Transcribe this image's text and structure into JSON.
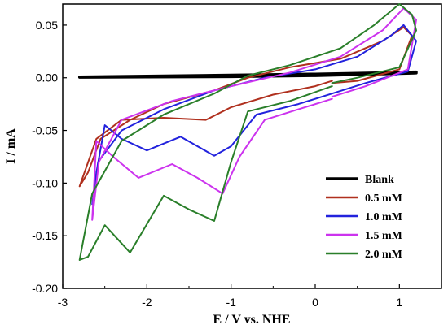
{
  "chart_data": {
    "type": "line",
    "title": "",
    "xlabel": "E / V vs. NHE",
    "ylabel": "I / mA",
    "xlim": [
      -3.0,
      1.5
    ],
    "ylim": [
      -0.2,
      0.07
    ],
    "xticks": [
      -3,
      -2,
      -1,
      0,
      1
    ],
    "xtick_labels": [
      "-3",
      "-2",
      "-1",
      "0",
      "1"
    ],
    "yticks": [
      -0.2,
      -0.15,
      -0.1,
      -0.05,
      0.0,
      0.05
    ],
    "ytick_labels": [
      "-0.20",
      "-0.15",
      "-0.10",
      "-0.05",
      "0.00",
      "0.05"
    ],
    "grid": false,
    "legend_position": "bottom-right",
    "series": [
      {
        "name": "Blank",
        "color": "#000000",
        "points": [
          [
            -2.8,
            0.0008
          ],
          [
            -2.0,
            0.0015
          ],
          [
            -1.0,
            0.0025
          ],
          [
            0.0,
            0.0035
          ],
          [
            1.0,
            0.005
          ],
          [
            1.2,
            0.0055
          ],
          [
            1.2,
            0.0045
          ],
          [
            0.0,
            0.002
          ],
          [
            -1.0,
            0.001
          ],
          [
            -2.0,
            0.0008
          ],
          [
            -2.8,
            0.0005
          ]
        ]
      },
      {
        "name": "0.5 mM",
        "color": "#b0301e",
        "points": [
          [
            0.2,
            -0.003
          ],
          [
            0.0,
            -0.008
          ],
          [
            -0.5,
            -0.016
          ],
          [
            -1.0,
            -0.028
          ],
          [
            -1.3,
            -0.04
          ],
          [
            -1.8,
            -0.038
          ],
          [
            -2.3,
            -0.04
          ],
          [
            -2.6,
            -0.058
          ],
          [
            -2.8,
            -0.103
          ],
          [
            -2.7,
            -0.09
          ],
          [
            -2.55,
            -0.058
          ],
          [
            -2.2,
            -0.04
          ],
          [
            -1.8,
            -0.025
          ],
          [
            -1.2,
            -0.012
          ],
          [
            -0.8,
            0.0
          ],
          [
            -0.3,
            0.01
          ],
          [
            0.3,
            0.018
          ],
          [
            0.8,
            0.035
          ],
          [
            1.05,
            0.048
          ],
          [
            1.15,
            0.04
          ],
          [
            1.0,
            0.008
          ],
          [
            0.5,
            -0.003
          ],
          [
            0.2,
            -0.005
          ]
        ]
      },
      {
        "name": "1.0 mM",
        "color": "#2222dd",
        "points": [
          [
            0.2,
            -0.015
          ],
          [
            -0.2,
            -0.025
          ],
          [
            -0.7,
            -0.035
          ],
          [
            -1.0,
            -0.065
          ],
          [
            -1.2,
            -0.074
          ],
          [
            -1.6,
            -0.056
          ],
          [
            -2.0,
            -0.069
          ],
          [
            -2.3,
            -0.058
          ],
          [
            -2.5,
            -0.045
          ],
          [
            -2.6,
            -0.09
          ],
          [
            -2.65,
            -0.12
          ],
          [
            -2.58,
            -0.08
          ],
          [
            -2.3,
            -0.05
          ],
          [
            -1.8,
            -0.03
          ],
          [
            -1.2,
            -0.012
          ],
          [
            -0.6,
            0.0
          ],
          [
            0.0,
            0.008
          ],
          [
            0.5,
            0.02
          ],
          [
            0.9,
            0.04
          ],
          [
            1.05,
            0.05
          ],
          [
            1.2,
            0.035
          ],
          [
            1.1,
            0.006
          ],
          [
            0.6,
            -0.005
          ],
          [
            0.2,
            -0.015
          ]
        ]
      },
      {
        "name": "1.5 mM",
        "color": "#cc33ee",
        "points": [
          [
            0.2,
            -0.02
          ],
          [
            -0.2,
            -0.03
          ],
          [
            -0.6,
            -0.04
          ],
          [
            -0.9,
            -0.075
          ],
          [
            -1.1,
            -0.11
          ],
          [
            -1.4,
            -0.095
          ],
          [
            -1.7,
            -0.082
          ],
          [
            -2.1,
            -0.095
          ],
          [
            -2.4,
            -0.075
          ],
          [
            -2.6,
            -0.06
          ],
          [
            -2.65,
            -0.135
          ],
          [
            -2.57,
            -0.08
          ],
          [
            -2.3,
            -0.04
          ],
          [
            -1.7,
            -0.022
          ],
          [
            -1.0,
            -0.008
          ],
          [
            -0.3,
            0.005
          ],
          [
            0.3,
            0.02
          ],
          [
            0.8,
            0.045
          ],
          [
            1.05,
            0.066
          ],
          [
            1.2,
            0.055
          ],
          [
            1.1,
            0.008
          ],
          [
            0.6,
            -0.008
          ],
          [
            0.2,
            -0.018
          ]
        ]
      },
      {
        "name": "2.0 mM",
        "color": "#2a7f2a",
        "points": [
          [
            0.2,
            -0.008
          ],
          [
            -0.3,
            -0.022
          ],
          [
            -0.8,
            -0.032
          ],
          [
            -1.0,
            -0.08
          ],
          [
            -1.2,
            -0.136
          ],
          [
            -1.5,
            -0.125
          ],
          [
            -1.8,
            -0.112
          ],
          [
            -2.2,
            -0.166
          ],
          [
            -2.5,
            -0.14
          ],
          [
            -2.7,
            -0.17
          ],
          [
            -2.8,
            -0.173
          ],
          [
            -2.65,
            -0.11
          ],
          [
            -2.3,
            -0.06
          ],
          [
            -1.8,
            -0.035
          ],
          [
            -1.2,
            -0.015
          ],
          [
            -0.8,
            0.002
          ],
          [
            -0.3,
            0.012
          ],
          [
            0.3,
            0.028
          ],
          [
            0.7,
            0.05
          ],
          [
            1.0,
            0.07
          ],
          [
            1.15,
            0.06
          ],
          [
            1.2,
            0.045
          ],
          [
            1.0,
            0.01
          ],
          [
            0.5,
            0.0
          ],
          [
            0.2,
            -0.005
          ]
        ]
      }
    ]
  }
}
